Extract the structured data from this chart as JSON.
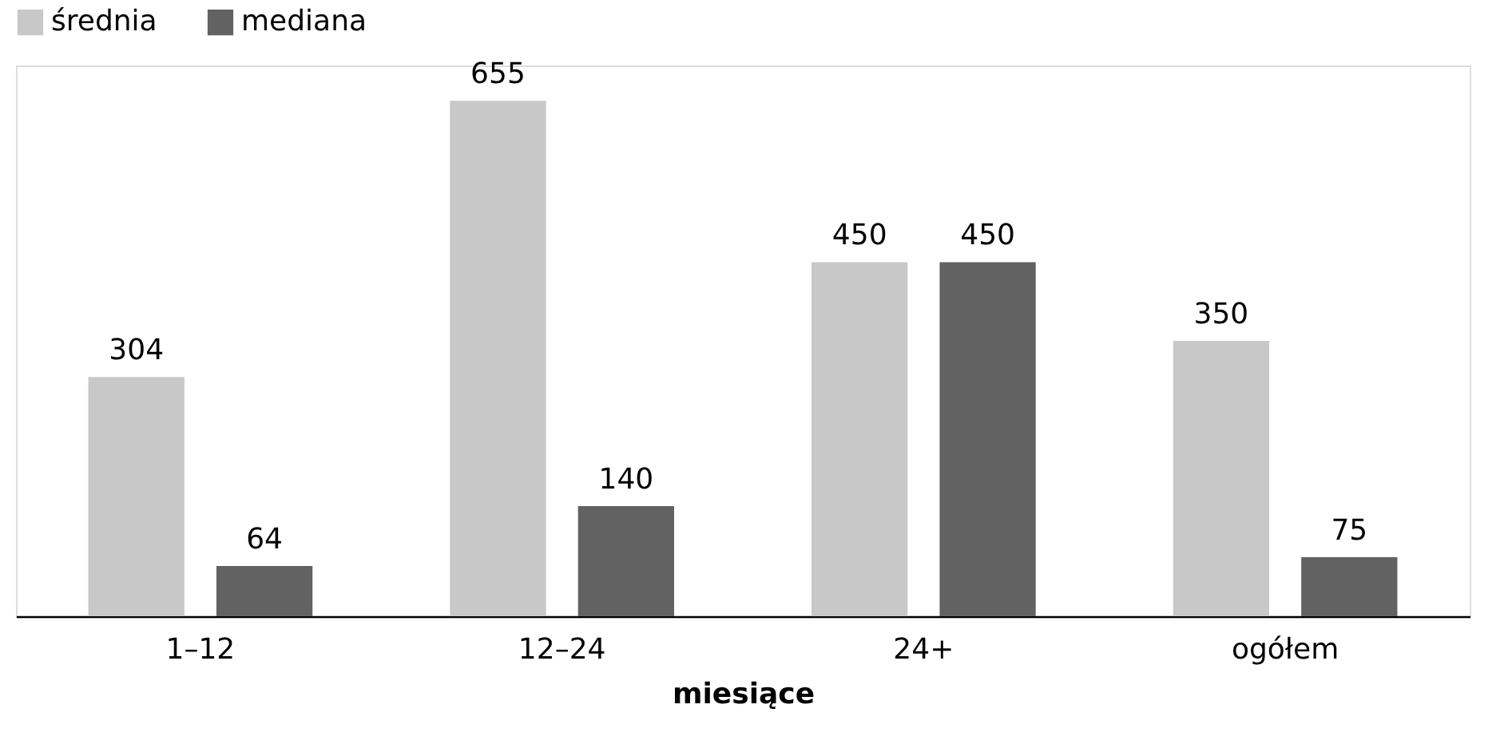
{
  "chart_data": {
    "type": "bar",
    "xlabel": "miesiące",
    "categories": [
      "1–12",
      "12–24",
      "24+",
      "ogółem"
    ],
    "series": [
      {
        "name": "średnia",
        "color": "#c8c8c8",
        "values": [
          304,
          655,
          450,
          350
        ]
      },
      {
        "name": "mediana",
        "color": "#626262",
        "values": [
          64,
          140,
          450,
          75
        ]
      }
    ],
    "data_labels": true,
    "legend": "top",
    "grid": false
  }
}
